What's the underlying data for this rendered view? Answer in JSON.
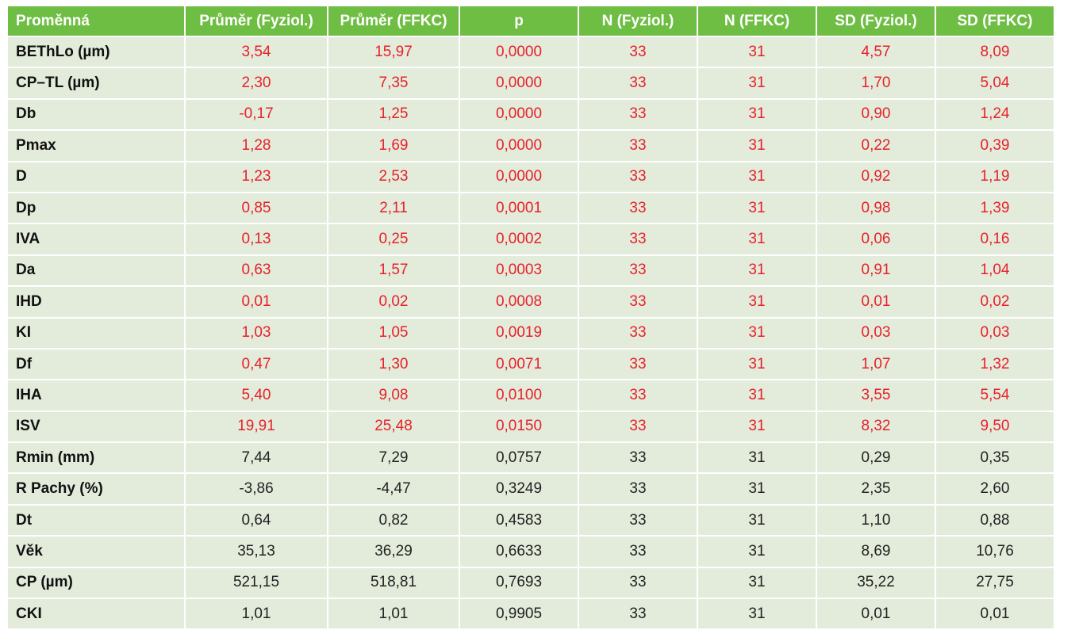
{
  "table": {
    "headers": [
      "Proměnná",
      "Průměr (Fyziol.)",
      "Průměr (FFKC)",
      "p",
      "N (Fyziol.)",
      "N (FFKC)",
      "SD (Fyziol.)",
      "SD (FFKC)"
    ],
    "highlight_color": "#e8202a",
    "header_color": "#6fbe44",
    "row_color": "#e3ecdb",
    "rows": [
      {
        "cells": [
          "BEThLo (µm)",
          "3,54",
          "15,97",
          "0,0000",
          "33",
          "31",
          "4,57",
          "8,09"
        ],
        "significant": true
      },
      {
        "cells": [
          "CP–TL (µm)",
          "2,30",
          "7,35",
          "0,0000",
          "33",
          "31",
          "1,70",
          "5,04"
        ],
        "significant": true
      },
      {
        "cells": [
          "Db",
          "-0,17",
          "1,25",
          "0,0000",
          "33",
          "31",
          "0,90",
          "1,24"
        ],
        "significant": true
      },
      {
        "cells": [
          "Pmax",
          "1,28",
          "1,69",
          "0,0000",
          "33",
          "31",
          "0,22",
          "0,39"
        ],
        "significant": true
      },
      {
        "cells": [
          "D",
          "1,23",
          "2,53",
          "0,0000",
          "33",
          "31",
          "0,92",
          "1,19"
        ],
        "significant": true
      },
      {
        "cells": [
          "Dp",
          "0,85",
          "2,11",
          "0,0001",
          "33",
          "31",
          "0,98",
          "1,39"
        ],
        "significant": true
      },
      {
        "cells": [
          "IVA",
          "0,13",
          "0,25",
          "0,0002",
          "33",
          "31",
          "0,06",
          "0,16"
        ],
        "significant": true
      },
      {
        "cells": [
          "Da",
          "0,63",
          "1,57",
          "0,0003",
          "33",
          "31",
          "0,91",
          "1,04"
        ],
        "significant": true
      },
      {
        "cells": [
          "IHD",
          "0,01",
          "0,02",
          "0,0008",
          "33",
          "31",
          "0,01",
          "0,02"
        ],
        "significant": true
      },
      {
        "cells": [
          "KI",
          "1,03",
          "1,05",
          "0,0019",
          "33",
          "31",
          "0,03",
          "0,03"
        ],
        "significant": true
      },
      {
        "cells": [
          "Df",
          "0,47",
          "1,30",
          "0,0071",
          "33",
          "31",
          "1,07",
          "1,32"
        ],
        "significant": true
      },
      {
        "cells": [
          "IHA",
          "5,40",
          "9,08",
          "0,0100",
          "33",
          "31",
          "3,55",
          "5,54"
        ],
        "significant": true
      },
      {
        "cells": [
          "ISV",
          "19,91",
          "25,48",
          "0,0150",
          "33",
          "31",
          "8,32",
          "9,50"
        ],
        "significant": true
      },
      {
        "cells": [
          "Rmin (mm)",
          "7,44",
          "7,29",
          "0,0757",
          "33",
          "31",
          "0,29",
          "0,35"
        ],
        "significant": false
      },
      {
        "cells": [
          "R Pachy (%)",
          "-3,86",
          "-4,47",
          "0,3249",
          "33",
          "31",
          "2,35",
          "2,60"
        ],
        "significant": false
      },
      {
        "cells": [
          "Dt",
          "0,64",
          "0,82",
          "0,4583",
          "33",
          "31",
          "1,10",
          "0,88"
        ],
        "significant": false
      },
      {
        "cells": [
          "Věk",
          "35,13",
          "36,29",
          "0,6633",
          "33",
          "31",
          "8,69",
          "10,76"
        ],
        "significant": false
      },
      {
        "cells": [
          "CP (µm)",
          "521,15",
          "518,81",
          "0,7693",
          "33",
          "31",
          "35,22",
          "27,75"
        ],
        "significant": false
      },
      {
        "cells": [
          "CKI",
          "1,01",
          "1,01",
          "0,9905",
          "33",
          "31",
          "0,01",
          "0,01"
        ],
        "significant": false
      }
    ]
  }
}
